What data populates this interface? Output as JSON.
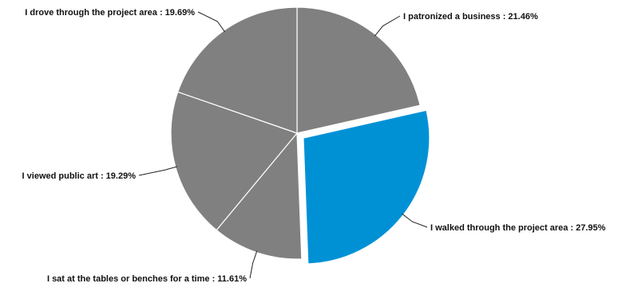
{
  "chart_data": {
    "type": "pie",
    "title": "",
    "exploded_slice": "I walked through the project area",
    "slices": [
      {
        "label": "I patronized a business",
        "value": 21.46,
        "display": "I patronized a business : 21.46%",
        "color": "#808080"
      },
      {
        "label": "I walked through the project area",
        "value": 27.95,
        "display": "I walked through the project area : 27.95%",
        "color": "#0091d5"
      },
      {
        "label": "I sat at the tables or benches for a time",
        "value": 11.61,
        "display": "I sat at the tables or benches for a time : 11.61%",
        "color": "#808080"
      },
      {
        "label": "I viewed public art",
        "value": 19.29,
        "display": "I viewed public art : 19.29%",
        "color": "#808080"
      },
      {
        "label": "I drove through the project area",
        "value": 19.69,
        "display": "I drove through the project area : 19.69%",
        "color": "#808080"
      }
    ]
  }
}
